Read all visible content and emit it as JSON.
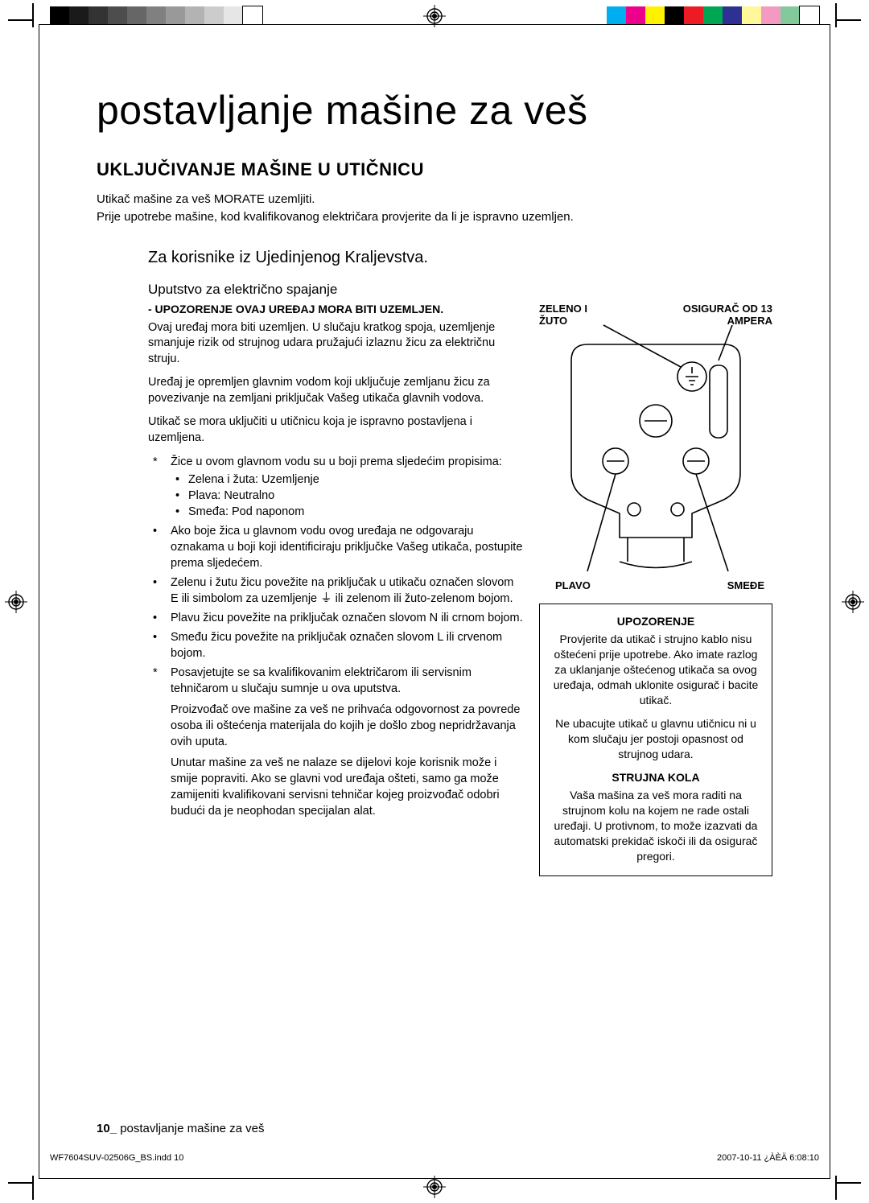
{
  "registration": {
    "grayscale_swatches": [
      "#000000",
      "#1a1a1a",
      "#333333",
      "#4d4d4d",
      "#666666",
      "#808080",
      "#999999",
      "#b3b3b3",
      "#cccccc",
      "#e6e6e6",
      "#ffffff"
    ],
    "color_swatches": [
      "#00aeef",
      "#ec008c",
      "#fff200",
      "#000000",
      "#ed1c24",
      "#00a651",
      "#2e3192",
      "#fff799",
      "#f49ac1",
      "#82ca9c",
      "#ffffff"
    ]
  },
  "page": {
    "main_title": "postavljanje mašine za veš",
    "section_title": "UKLJUČIVANJE MAŠINE U UTIČNICU",
    "lead_1": "Utikač mašine za veš MORATE uzemljiti.",
    "lead_2": "Prije upotrebe mašine, kod kvalifikovanog električara provjerite da li je ispravno uzemljen.",
    "uk_title": "Za korisnike iz Ujedinjenog Kraljevstva.",
    "wiring_title": "Uputstvo za električno spajanje",
    "warning_line": "- UPOZORENJE OVAJ UREĐAJ MORA BITI UZEMLJEN.",
    "para_1": "Ovaj uređaj mora biti uzemljen. U slučaju kratkog spoja, uzemljenje smanjuje rizik od strujnog udara pružajući izlaznu žicu za električnu struju.",
    "para_2": "Uređaj je opremljen glavnim vodom koji uključuje zemljanu žicu za povezivanje na zemljani priključak Vašeg utikača glavnih vodova.",
    "para_3": "Utikač se mora uključiti u utičnicu koja je ispravno postavljena i uzemljena.",
    "bullets": [
      {
        "marker": "*",
        "text": "Žice u ovom glavnom vodu su u boji prema sljedećim propisima:",
        "sub": [
          "Zelena i žuta: Uzemljenje",
          "Plava: Neutralno",
          "Smeđa: Pod naponom"
        ]
      },
      {
        "marker": "•",
        "text": "Ako boje žica u glavnom vodu ovog uređaja ne odgovaraju oznakama u boji koji identificiraju priključke Vašeg utikača, postupite prema sljedećem."
      },
      {
        "marker": "•",
        "text": "Zelenu i žutu žicu povežite na priključak u utikaču označen slovom E ili simbolom za uzemljenje ⏚ ili zelenom ili žuto-zelenom bojom."
      },
      {
        "marker": "•",
        "text": "Plavu žicu povežite na priključak označen slovom N ili crnom bojom."
      },
      {
        "marker": "•",
        "text": "Smeđu žicu povežite na priključak označen slovom L ili crvenom bojom."
      },
      {
        "marker": "*",
        "text": "Posavjetujte se sa kvalifikovanim električarom ili servisnim tehničarom u slučaju sumnje u ova uputstva.\nProizvođač ove mašine za veš ne prihvaća odgovornost za povrede osoba ili oštećenja materijala do kojih je došlo zbog nepridržavanja ovih uputa.\nUnutar mašine za veš ne nalaze se dijelovi koje korisnik može i smije popraviti. Ako se glavni vod uređaja ošteti, samo ga može zamijeniti kvalifikovani servisni tehničar kojeg proizvođač odobri budući da je neophodan specijalan alat."
      }
    ],
    "diagram": {
      "label_green_yellow": "ZELENO I ŽUTO",
      "label_fuse": "OSIGURAČ OD 13 AMPERA",
      "label_blue": "PLAVO",
      "label_brown": "SMEĐE",
      "stroke": "#000000",
      "bg": "#ffffff"
    },
    "box": {
      "h1": "UPOZORENJE",
      "p1": "Provjerite da utikač i strujno kablo nisu oštećeni prije upotrebe. Ako imate razlog za uklanjanje oštećenog utikača sa ovog uređaja, odmah uklonite osigurač i bacite utikač.",
      "p2": "Ne ubacujte utikač u glavnu utičnicu ni u kom slučaju jer postoji opasnost od strujnog udara.",
      "h2": "STRUJNA KOLA",
      "p3": "Vaša mašina za veš mora raditi na strujnom kolu na kojem ne rade ostali uređaji. U protivnom, to može izazvati da automatski prekidač iskoči ili da osigurač pregori."
    },
    "footer_num": "10_",
    "footer_text": " postavljanje mašine za veš",
    "footline_left": "WF7604SUV-02506G_BS.indd   10",
    "footline_right": "2007-10-11   ¿ÀÈÄ 6:08:10"
  }
}
